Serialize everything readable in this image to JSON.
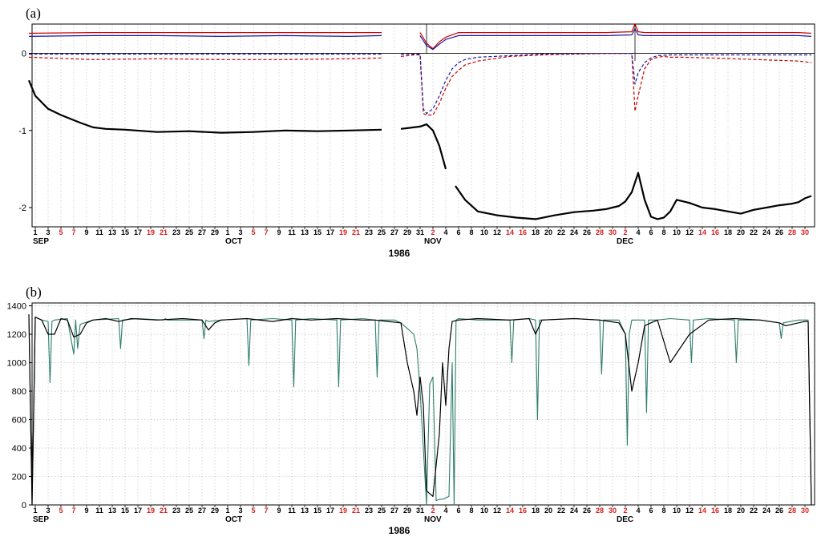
{
  "chart_data": [
    {
      "type": "line",
      "panel_label": "(a)",
      "year_label": "1986",
      "x_range": [
        "1986-09-01",
        "1986-12-31"
      ],
      "ylim": [
        -2.25,
        0.38
      ],
      "yticks": [
        0,
        -1,
        -2
      ],
      "grid": "vertical dotted every 2 days",
      "months": [
        {
          "label": "SEP",
          "day": 1
        },
        {
          "label": "OCT",
          "day": 31
        },
        {
          "label": "NOV",
          "day": 62
        },
        {
          "label": "DEC",
          "day": 92
        }
      ],
      "weekend_days": [
        7,
        21,
        5,
        19,
        2,
        16,
        30,
        14,
        28
      ],
      "series": [
        {
          "color": "#cc0000",
          "style": "solid",
          "gaps": [
            [
              56,
              57
            ],
            [
              60,
              61
            ]
          ],
          "x": [
            0,
            10,
            20,
            30,
            40,
            50,
            55,
            58,
            61,
            62,
            63,
            64,
            65,
            67,
            70,
            80,
            90,
            94,
            94.5,
            95,
            96,
            100,
            105,
            110,
            115,
            120,
            122
          ],
          "y": [
            0.26,
            0.27,
            0.27,
            0.27,
            0.27,
            0.27,
            0.27,
            0.27,
            0.27,
            0.13,
            0.06,
            0.15,
            0.21,
            0.27,
            0.27,
            0.27,
            0.27,
            0.28,
            0.38,
            0.28,
            0.27,
            0.27,
            0.27,
            0.27,
            0.27,
            0.27,
            0.26
          ]
        },
        {
          "color": "#1a1aa0",
          "style": "solid",
          "gaps": [
            [
              56,
              57
            ],
            [
              60,
              61
            ]
          ],
          "x": [
            0,
            10,
            20,
            30,
            40,
            50,
            55,
            58,
            61,
            62,
            63,
            64,
            65,
            67,
            70,
            80,
            90,
            94,
            94.5,
            95,
            96,
            100,
            110,
            120,
            122
          ],
          "y": [
            0.22,
            0.23,
            0.23,
            0.22,
            0.23,
            0.22,
            0.23,
            0.23,
            0.23,
            0.1,
            0.05,
            0.12,
            0.18,
            0.23,
            0.23,
            0.23,
            0.23,
            0.24,
            0.32,
            0.24,
            0.23,
            0.23,
            0.23,
            0.23,
            0.22
          ]
        },
        {
          "color": "#cc0000",
          "style": "dashed",
          "gaps": [
            [
              56,
              57
            ]
          ],
          "x": [
            0,
            10,
            20,
            30,
            40,
            50,
            55,
            58,
            60,
            61,
            61.5,
            62,
            63,
            64,
            65,
            66,
            67,
            68,
            70,
            75,
            80,
            85,
            90,
            93,
            94,
            94.5,
            95,
            96,
            97,
            98,
            99,
            100,
            102,
            110,
            120,
            122
          ],
          "y": [
            -0.05,
            -0.08,
            -0.07,
            -0.08,
            -0.08,
            -0.07,
            -0.06,
            -0.04,
            -0.02,
            -0.02,
            -0.78,
            -0.8,
            -0.8,
            -0.65,
            -0.45,
            -0.3,
            -0.22,
            -0.15,
            -0.1,
            -0.04,
            -0.02,
            -0.01,
            0.0,
            0.0,
            0.0,
            -0.75,
            -0.55,
            -0.2,
            -0.08,
            -0.05,
            -0.04,
            -0.05,
            -0.05,
            -0.07,
            -0.1,
            -0.12
          ]
        },
        {
          "color": "#1a1aa0",
          "style": "dashed",
          "gaps": [
            [
              56,
              57
            ]
          ],
          "x": [
            0,
            10,
            20,
            30,
            40,
            50,
            55,
            58,
            60,
            61,
            61.5,
            62,
            63,
            64,
            65,
            66,
            67,
            68,
            70,
            80,
            90,
            94,
            94.5,
            95,
            96,
            97,
            98,
            100,
            110,
            122
          ],
          "y": [
            -0.01,
            -0.01,
            -0.01,
            -0.01,
            -0.01,
            -0.01,
            -0.01,
            -0.01,
            -0.01,
            -0.01,
            -0.72,
            -0.78,
            -0.72,
            -0.55,
            -0.35,
            -0.2,
            -0.12,
            -0.08,
            -0.05,
            -0.01,
            0.0,
            0.0,
            -0.4,
            -0.25,
            -0.12,
            -0.06,
            -0.03,
            -0.02,
            -0.02,
            -0.02
          ]
        },
        {
          "color": "#000000",
          "style": "solid-bold",
          "gaps": [
            [
              56,
              57
            ],
            [
              65,
              66.5
            ]
          ],
          "x": [
            0,
            1,
            3,
            5,
            8,
            10,
            12,
            15,
            20,
            25,
            30,
            35,
            40,
            45,
            50,
            55,
            58,
            61,
            62,
            63,
            64,
            65,
            66.5,
            68,
            70,
            73,
            76,
            79,
            82,
            85,
            88,
            90,
            92,
            93,
            94,
            95,
            96,
            97,
            98,
            99,
            100,
            101,
            103,
            105,
            107,
            109,
            111,
            113,
            115,
            117,
            119,
            120,
            121,
            122
          ],
          "y": [
            -0.35,
            -0.55,
            -0.72,
            -0.8,
            -0.9,
            -0.96,
            -0.98,
            -0.99,
            -1.02,
            -1.01,
            -1.03,
            -1.02,
            -1.0,
            -1.01,
            -1.0,
            -0.99,
            -0.98,
            -0.95,
            -0.92,
            -1.0,
            -1.2,
            -1.5,
            -1.72,
            -1.9,
            -2.05,
            -2.1,
            -2.13,
            -2.15,
            -2.1,
            -2.06,
            -2.04,
            -2.02,
            -1.98,
            -1.92,
            -1.8,
            -1.55,
            -1.9,
            -2.12,
            -2.15,
            -2.13,
            -2.05,
            -1.9,
            -1.94,
            -2.0,
            -2.02,
            -2.05,
            -2.08,
            -2.03,
            -2.0,
            -1.97,
            -1.95,
            -1.93,
            -1.88,
            -1.85
          ]
        }
      ]
    },
    {
      "type": "line",
      "panel_label": "(b)",
      "year_label": "1986",
      "x_range": [
        "1986-09-01",
        "1986-12-31"
      ],
      "ylim": [
        0,
        1420
      ],
      "yticks": [
        0,
        200,
        400,
        600,
        800,
        1000,
        1200,
        1400
      ],
      "grid": "vertical and horizontal dotted",
      "months": [
        {
          "label": "SEP",
          "day": 1
        },
        {
          "label": "OCT",
          "day": 31
        },
        {
          "label": "NOV",
          "day": 62
        },
        {
          "label": "DEC",
          "day": 92
        }
      ],
      "weekend_days": [
        7,
        21,
        5,
        19,
        2,
        16,
        30,
        14,
        28
      ],
      "series": [
        {
          "color": "#2e7d6b",
          "style": "thin",
          "x": [
            0,
            0.5,
            1,
            2,
            3,
            3.3,
            3.6,
            4,
            6,
            7,
            7.3,
            7.6,
            8,
            10,
            14,
            14.3,
            14.6,
            17,
            21,
            21.3,
            21.6,
            24,
            27,
            27.3,
            27.6,
            28,
            30,
            34,
            34.3,
            34.6,
            38,
            41,
            41.3,
            41.6,
            44,
            48,
            48.3,
            48.6,
            52,
            54,
            54.3,
            54.6,
            55,
            57,
            58,
            60,
            60.5,
            61,
            62,
            62.5,
            63,
            63.5,
            64,
            64.5,
            65,
            65.5,
            66,
            66.3,
            66.6,
            67,
            70,
            75,
            75.3,
            75.6,
            78,
            79,
            79.3,
            79.6,
            80,
            85,
            89,
            89.3,
            89.6,
            92,
            93,
            93.3,
            93.6,
            94,
            96,
            96.3,
            96.6,
            98,
            100,
            103,
            103.3,
            103.6,
            106,
            110,
            110.3,
            110.6,
            114,
            117,
            117.3,
            117.6,
            120,
            121,
            121.5,
            122
          ],
          "y": [
            1340,
            0,
            1320,
            1300,
            1290,
            860,
            1290,
            1300,
            1310,
            1060,
            1300,
            1100,
            1270,
            1300,
            1310,
            1100,
            1300,
            1310,
            1300,
            1310,
            1300,
            1300,
            1300,
            1170,
            1300,
            1290,
            1300,
            1310,
            980,
            1300,
            1310,
            1300,
            830,
            1300,
            1310,
            1300,
            830,
            1300,
            1310,
            1300,
            900,
            1300,
            1300,
            1300,
            1280,
            1200,
            1100,
            800,
            0,
            850,
            900,
            30,
            40,
            40,
            50,
            60,
            1000,
            0,
            1300,
            1310,
            1300,
            1300,
            1000,
            1300,
            1310,
            1300,
            600,
            1300,
            1300,
            1310,
            1300,
            920,
            1300,
            1300,
            1200,
            420,
            1200,
            1300,
            1300,
            650,
            1300,
            1300,
            1310,
            1300,
            1000,
            1300,
            1310,
            1300,
            1000,
            1300,
            1300,
            1280,
            1170,
            1280,
            1300,
            1300,
            1300,
            0
          ]
        },
        {
          "color": "#000000",
          "style": "solid",
          "x": [
            0,
            0.5,
            1,
            2,
            3,
            4,
            5,
            6,
            7,
            8,
            9,
            10,
            12,
            14,
            16,
            20,
            24,
            27,
            28,
            29,
            30,
            34,
            38,
            41,
            44,
            48,
            52,
            54,
            56,
            58,
            59,
            60,
            60.5,
            61,
            61.5,
            62,
            63,
            64,
            64.5,
            65,
            65.5,
            66,
            67,
            70,
            75,
            78,
            79,
            80,
            85,
            89,
            92,
            93,
            94,
            95,
            96,
            97,
            98,
            100,
            103,
            106,
            110,
            114,
            117,
            118,
            120,
            121,
            121.5,
            122
          ],
          "y": [
            1340,
            0,
            1320,
            1300,
            1200,
            1200,
            1310,
            1300,
            1180,
            1200,
            1280,
            1300,
            1310,
            1290,
            1310,
            1300,
            1310,
            1300,
            1230,
            1280,
            1300,
            1310,
            1290,
            1310,
            1300,
            1310,
            1300,
            1300,
            1290,
            1280,
            1000,
            800,
            630,
            900,
            700,
            100,
            60,
            500,
            1000,
            700,
            1100,
            1290,
            1300,
            1310,
            1300,
            1310,
            1200,
            1300,
            1310,
            1300,
            1280,
            1200,
            800,
            1000,
            1260,
            1280,
            1300,
            1000,
            1200,
            1300,
            1310,
            1300,
            1280,
            1260,
            1280,
            1290,
            1290,
            0
          ]
        }
      ]
    }
  ]
}
